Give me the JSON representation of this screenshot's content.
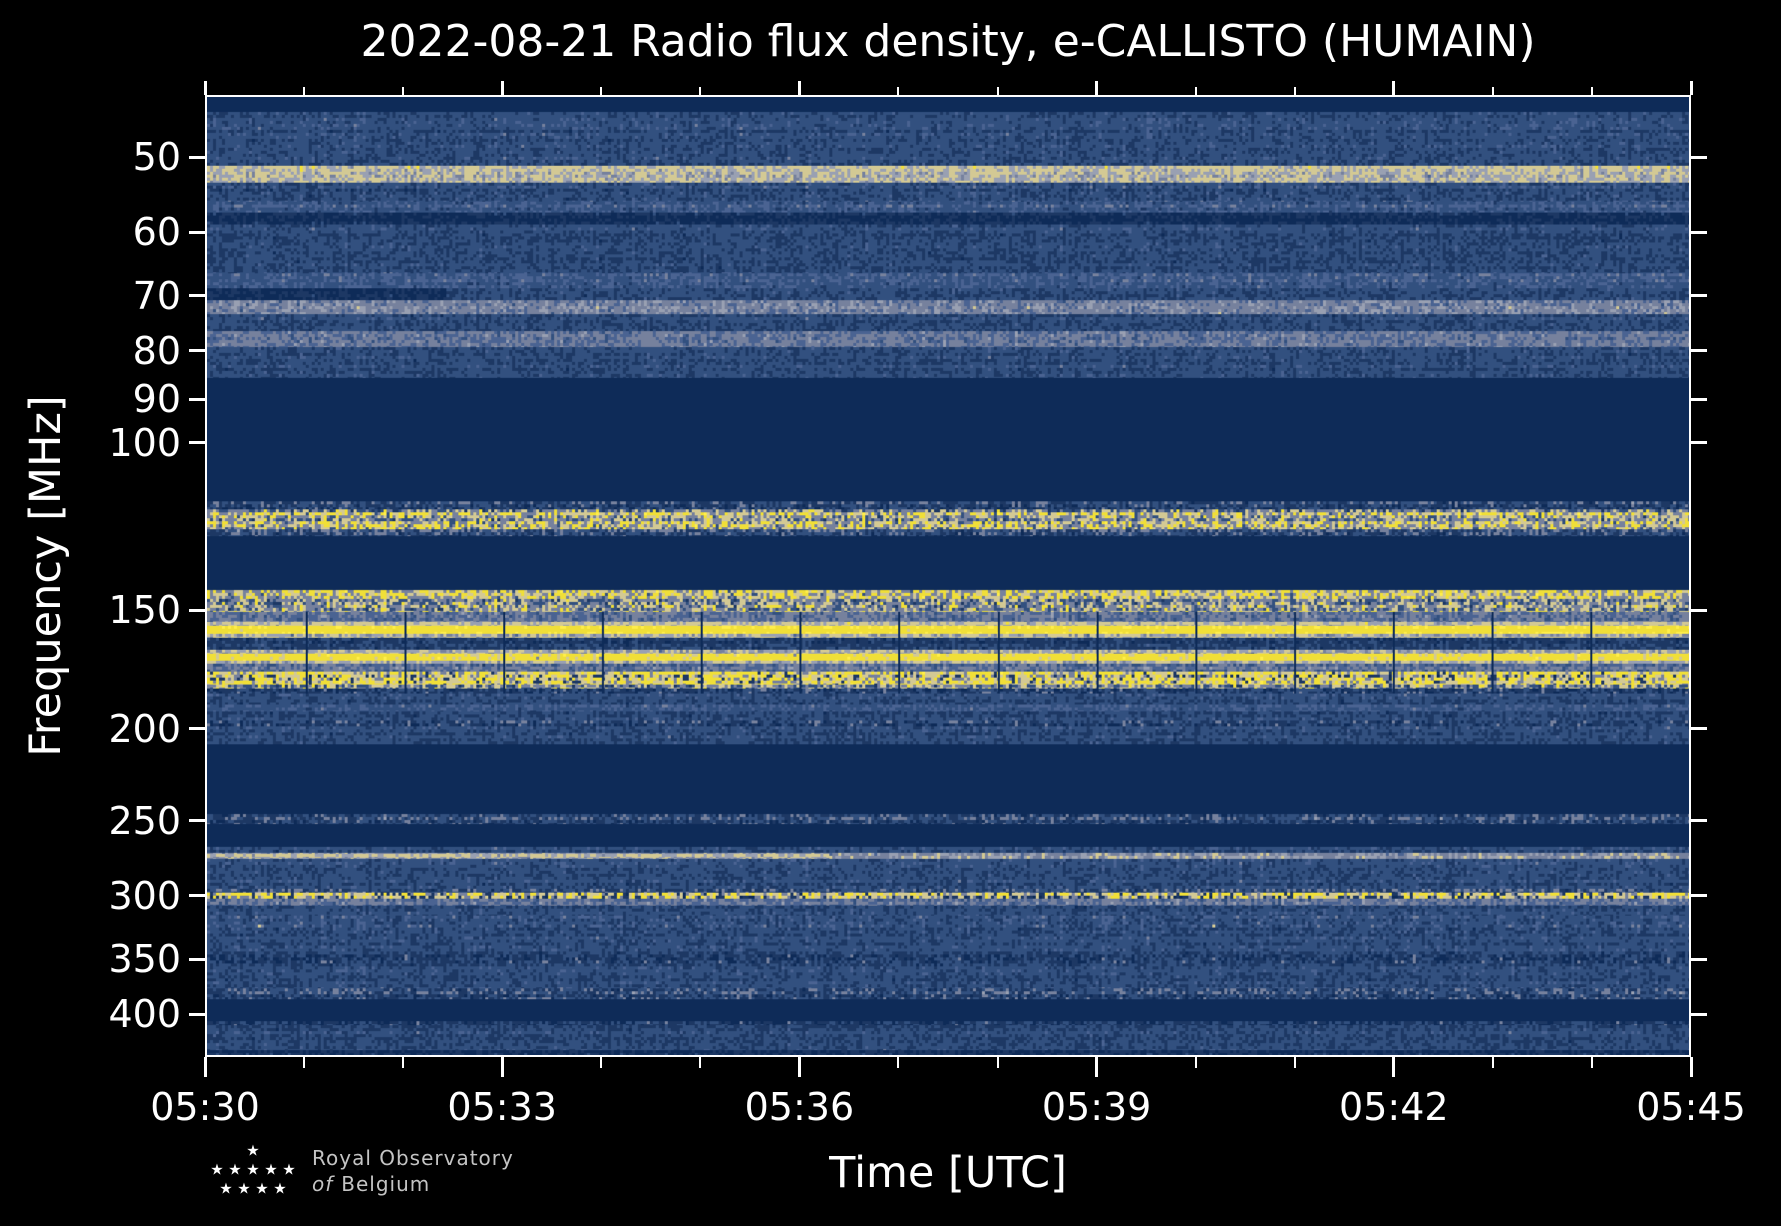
{
  "title": "2022-08-21 Radio flux density, e-CALLISTO (HUMAIN)",
  "logo": {
    "org_line1": "Royal Observatory",
    "org_line2_prefix": "of",
    "org_line2": "Belgium"
  },
  "chart_data": {
    "type": "heatmap",
    "subtype": "radio-spectrogram",
    "title": "2022-08-21 Radio flux density, e-CALLISTO (HUMAIN)",
    "xlabel": "Time [UTC]",
    "ylabel": "Frequency [MHz]",
    "x_ticks": [
      "05:30",
      "05:33",
      "05:36",
      "05:39",
      "05:42",
      "05:45"
    ],
    "x_minor_per_major": 3,
    "x_total_minutes": 15,
    "y_scale": "log",
    "y_ticks": [
      50,
      60,
      70,
      80,
      90,
      100,
      150,
      200,
      250,
      300,
      350,
      400
    ],
    "y_range_mhz": [
      43,
      443.5
    ],
    "grid": false,
    "legend": "none",
    "figure_bg": "#000000",
    "text_color": "#ffffff",
    "palette": {
      "nd": "#0e2b58",
      "nv": "#1d3864",
      "bl": "#32507f",
      "bh": "#4a6392",
      "sl": "#76819d",
      "sh": "#99a0b2",
      "cr": "#d3c994",
      "yl": "#f0df38",
      "yb": "#ffee4a"
    },
    "styles": {
      "quiet": [
        [
          "nd",
          1.0
        ]
      ],
      "dim": [
        [
          "nd",
          0.55
        ],
        [
          "nv",
          0.3
        ],
        [
          "bl",
          0.15
        ]
      ],
      "noise": [
        [
          "nd",
          0.1
        ],
        [
          "nv",
          0.3
        ],
        [
          "bl",
          0.38
        ],
        [
          "bh",
          0.14
        ],
        [
          "sl",
          0.07
        ],
        [
          "sh",
          0.01
        ]
      ],
      "noise_light": [
        [
          "nv",
          0.18
        ],
        [
          "bl",
          0.34
        ],
        [
          "bh",
          0.26
        ],
        [
          "sl",
          0.16
        ],
        [
          "sh",
          0.06
        ]
      ],
      "noise_gapped": [
        [
          "nd",
          0.25
        ],
        [
          "nv",
          0.3
        ],
        [
          "bl",
          0.28
        ],
        [
          "bh",
          0.09
        ],
        [
          "sl",
          0.08
        ]
      ],
      "slate_band": [
        [
          "nv",
          0.1
        ],
        [
          "bl",
          0.18
        ],
        [
          "bh",
          0.22
        ],
        [
          "sl",
          0.3
        ],
        [
          "sh",
          0.18
        ],
        [
          "cr",
          0.02
        ]
      ],
      "slate_cream": [
        [
          "bl",
          0.12
        ],
        [
          "bh",
          0.16
        ],
        [
          "sl",
          0.28
        ],
        [
          "sh",
          0.2
        ],
        [
          "cr",
          0.22
        ],
        [
          "yl",
          0.02
        ]
      ],
      "slate_dash": [
        [
          "nd",
          0.28
        ],
        [
          "nv",
          0.22
        ],
        [
          "bl",
          0.2
        ],
        [
          "sl",
          0.22
        ],
        [
          "sh",
          0.08
        ]
      ],
      "cream_band": [
        [
          "bh",
          0.08
        ],
        [
          "sl",
          0.18
        ],
        [
          "sh",
          0.22
        ],
        [
          "cr",
          0.38
        ],
        [
          "yl",
          0.11
        ],
        [
          "yb",
          0.03
        ]
      ],
      "speck_faint": [
        [
          "nd",
          0.14
        ],
        [
          "nv",
          0.26
        ],
        [
          "bl",
          0.32
        ],
        [
          "bh",
          0.15
        ],
        [
          "sl",
          0.08
        ],
        [
          "cr",
          0.03
        ],
        [
          "yl",
          0.02
        ]
      ],
      "yellow_speckle": [
        [
          "nv",
          0.16
        ],
        [
          "bl",
          0.16
        ],
        [
          "sl",
          0.18
        ],
        [
          "cr",
          0.16
        ],
        [
          "yl",
          0.24
        ],
        [
          "yb",
          0.1
        ]
      ],
      "yellow_dash": [
        [
          "nd",
          0.18
        ],
        [
          "nv",
          0.14
        ],
        [
          "sl",
          0.1
        ],
        [
          "cr",
          0.16
        ],
        [
          "yl",
          0.3
        ],
        [
          "yb",
          0.12
        ]
      ],
      "yellow_line": [
        [
          "cr",
          0.1
        ],
        [
          "yl",
          0.64
        ],
        [
          "yb",
          0.26
        ]
      ],
      "yellow_line2": [
        [
          "nd",
          0.08
        ],
        [
          "sl",
          0.06
        ],
        [
          "cr",
          0.12
        ],
        [
          "yl",
          0.5
        ],
        [
          "yb",
          0.24
        ]
      ]
    },
    "bands": [
      {
        "f": [
          43.0,
          44.6
        ],
        "s": "quiet"
      },
      {
        "f": [
          44.6,
          50.8
        ],
        "s": "noise"
      },
      {
        "f": [
          50.8,
          53.0
        ],
        "s": "cream_band"
      },
      {
        "f": [
          53.0,
          55.5
        ],
        "s": "speck_faint"
      },
      {
        "f": [
          55.5,
          57.0
        ],
        "s": "noise_light"
      },
      {
        "f": [
          57.0,
          58.6
        ],
        "s": "dim"
      },
      {
        "f": [
          58.6,
          66.0
        ],
        "s": "noise"
      },
      {
        "f": [
          66.0,
          68.5
        ],
        "s": "noise_light"
      },
      {
        "f": [
          68.5,
          70.5
        ],
        "s": "noise"
      },
      {
        "f": [
          68.5,
          71.0
        ],
        "s": "dim",
        "x": [
          0,
          0.16
        ]
      },
      {
        "f": [
          70.5,
          73.0
        ],
        "s": "slate_cream"
      },
      {
        "f": [
          73.0,
          76.0
        ],
        "s": "noise"
      },
      {
        "f": [
          76.0,
          79.0
        ],
        "s": "slate_band"
      },
      {
        "f": [
          79.0,
          85.3
        ],
        "s": "noise"
      },
      {
        "f": [
          85.3,
          115.0
        ],
        "s": "quiet"
      },
      {
        "f": [
          115.0,
          117.5
        ],
        "s": "slate_dash"
      },
      {
        "f": [
          117.5,
          123.2
        ],
        "s": "yellow_speckle"
      },
      {
        "f": [
          123.2,
          125.2
        ],
        "s": "slate_dash"
      },
      {
        "f": [
          125.2,
          143.0
        ],
        "s": "quiet"
      },
      {
        "f": [
          143.0,
          150.8
        ],
        "s": "yellow_speckle"
      },
      {
        "f": [
          150.8,
          154.5
        ],
        "s": "slate_band",
        "gaps": true
      },
      {
        "f": [
          154.5,
          155.9
        ],
        "s": "cream_band",
        "gaps": true
      },
      {
        "f": [
          155.9,
          158.9
        ],
        "s": "yellow_line",
        "gaps": true
      },
      {
        "f": [
          158.9,
          160.4
        ],
        "s": "cream_band",
        "gaps": true
      },
      {
        "f": [
          160.4,
          165.4
        ],
        "s": "noise_gapped",
        "gaps": true
      },
      {
        "f": [
          165.4,
          166.9
        ],
        "s": "cream_band",
        "gaps": true
      },
      {
        "f": [
          166.9,
          169.6
        ],
        "s": "yellow_line2",
        "gaps": true
      },
      {
        "f": [
          169.6,
          171.0
        ],
        "s": "cream_band",
        "gaps": true
      },
      {
        "f": [
          171.0,
          174.3
        ],
        "s": "slate_band",
        "gaps": true
      },
      {
        "f": [
          174.3,
          179.7
        ],
        "s": "yellow_dash",
        "gaps": true
      },
      {
        "f": [
          179.7,
          181.5
        ],
        "s": "yellow_speckle",
        "gaps": true
      },
      {
        "f": [
          181.5,
          184.0
        ],
        "s": "slate_dash",
        "gaps": true
      },
      {
        "f": [
          184.0,
          189.0
        ],
        "s": "noise"
      },
      {
        "f": [
          189.0,
          192.0
        ],
        "s": "noise_light"
      },
      {
        "f": [
          192.0,
          196.5
        ],
        "s": "noise"
      },
      {
        "f": [
          196.5,
          199.0
        ],
        "s": "slate_dash"
      },
      {
        "f": [
          199.0,
          208.3
        ],
        "s": "noise"
      },
      {
        "f": [
          208.3,
          246.8
        ],
        "s": "quiet"
      },
      {
        "f": [
          246.8,
          252.4
        ],
        "s": "slate_dash"
      },
      {
        "f": [
          252.4,
          267.3
        ],
        "s": "quiet"
      },
      {
        "f": [
          267.3,
          271.0
        ],
        "s": "noise"
      },
      {
        "f": [
          271.0,
          275.0
        ],
        "s": "slate_cream"
      },
      {
        "f": [
          271.5,
          274.5
        ],
        "s": "cream_band",
        "x": [
          0,
          0.42
        ]
      },
      {
        "f": [
          275.0,
          296.0
        ],
        "s": "noise"
      },
      {
        "f": [
          296.0,
          298.5
        ],
        "s": "slate_dash"
      },
      {
        "f": [
          298.5,
          303.0
        ],
        "s": "yellow_dash"
      },
      {
        "f": [
          303.0,
          308.0
        ],
        "s": "slate_band"
      },
      {
        "f": [
          308.0,
          316.0
        ],
        "s": "noise"
      },
      {
        "f": [
          316.0,
          330.0
        ],
        "s": "speck_faint"
      },
      {
        "f": [
          330.0,
          347.0
        ],
        "s": "noise"
      },
      {
        "f": [
          347.0,
          355.0
        ],
        "s": "slate_dash"
      },
      {
        "f": [
          355.0,
          377.0
        ],
        "s": "noise"
      },
      {
        "f": [
          377.0,
          387.0
        ],
        "s": "slate_dash"
      },
      {
        "f": [
          387.0,
          408.0
        ],
        "s": "quiet"
      },
      {
        "f": [
          408.0,
          412.0
        ],
        "s": "slate_dash"
      },
      {
        "f": [
          412.0,
          438.0
        ],
        "s": "noise"
      },
      {
        "f": [
          438.0,
          443.5
        ],
        "s": "dim"
      }
    ]
  }
}
